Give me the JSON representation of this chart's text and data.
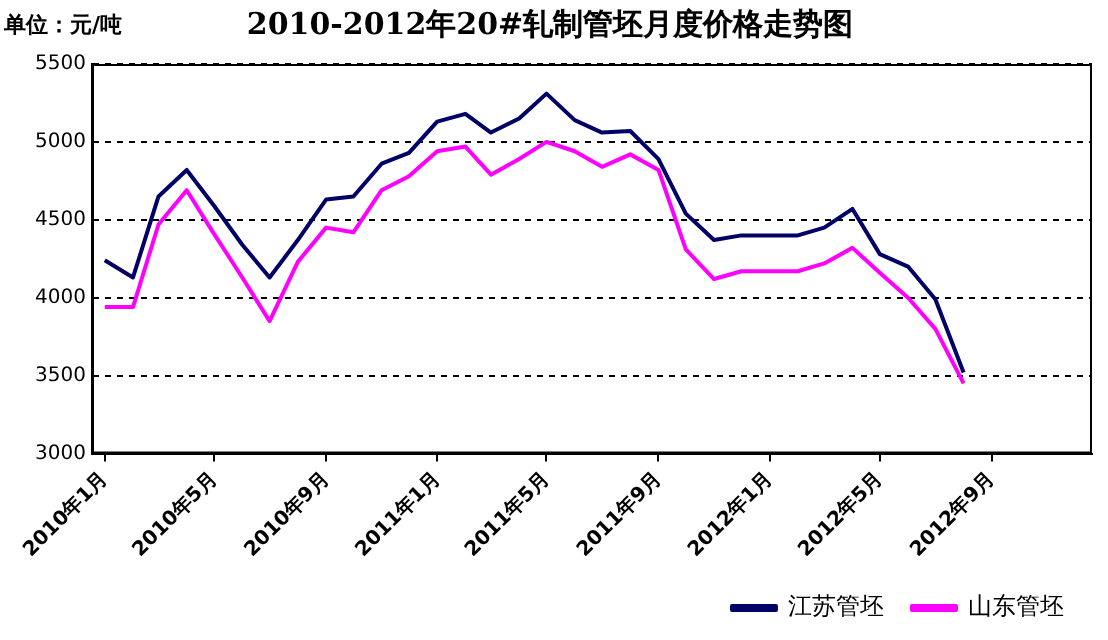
{
  "chart_data": {
    "type": "line",
    "title": "2010-2012年20#轧制管坯月度价格走势图",
    "ylabel": "单位：元/吨",
    "x": [
      "2010-01",
      "2010-02",
      "2010-03",
      "2010-04",
      "2010-05",
      "2010-06",
      "2010-07",
      "2010-08",
      "2010-09",
      "2010-10",
      "2010-11",
      "2010-12",
      "2011-01",
      "2011-02",
      "2011-03",
      "2011-04",
      "2011-05",
      "2011-06",
      "2011-07",
      "2011-08",
      "2011-09",
      "2011-10",
      "2011-11",
      "2011-12",
      "2012-01",
      "2012-02",
      "2012-03",
      "2012-04",
      "2012-05",
      "2012-06",
      "2012-07",
      "2012-08"
    ],
    "series": [
      {
        "name": "江苏管坯",
        "color": "#000066",
        "values": [
          4240,
          4130,
          4650,
          4820,
          4590,
          4340,
          4130,
          4370,
          4630,
          4650,
          4860,
          4930,
          5130,
          5180,
          5060,
          5150,
          5310,
          5140,
          5060,
          5070,
          4890,
          4540,
          4370,
          4400,
          4400,
          4400,
          4450,
          4570,
          4280,
          4200,
          3990,
          3520
        ]
      },
      {
        "name": "山东管坯",
        "color": "#ff00ff",
        "values": [
          3940,
          3940,
          4470,
          4690,
          4410,
          4130,
          3850,
          4230,
          4450,
          4420,
          4690,
          4780,
          4940,
          4970,
          4790,
          4890,
          5000,
          4940,
          4840,
          4920,
          4820,
          4310,
          4120,
          4170,
          4170,
          4170,
          4220,
          4320,
          4160,
          4000,
          3800,
          3450
        ]
      }
    ],
    "xlim": [
      "2009-12-18",
      "2012-12-20"
    ],
    "xticks": [
      {
        "value": "2010-01",
        "label": "2010年1月"
      },
      {
        "value": "2010-05",
        "label": "2010年5月"
      },
      {
        "value": "2010-09",
        "label": "2010年9月"
      },
      {
        "value": "2011-01",
        "label": "2011年1月"
      },
      {
        "value": "2011-05",
        "label": "2011年5月"
      },
      {
        "value": "2011-09",
        "label": "2011年9月"
      },
      {
        "value": "2012-01",
        "label": "2012年1月"
      },
      {
        "value": "2012-05",
        "label": "2012年5月"
      },
      {
        "value": "2012-09",
        "label": "2012年9月"
      }
    ],
    "ylim": [
      3000,
      5500
    ],
    "yticks": [
      3000,
      3500,
      4000,
      4500,
      5000,
      5500
    ],
    "grid": "y",
    "legend": "bottom right",
    "marker": "none",
    "line_style": "solid"
  }
}
